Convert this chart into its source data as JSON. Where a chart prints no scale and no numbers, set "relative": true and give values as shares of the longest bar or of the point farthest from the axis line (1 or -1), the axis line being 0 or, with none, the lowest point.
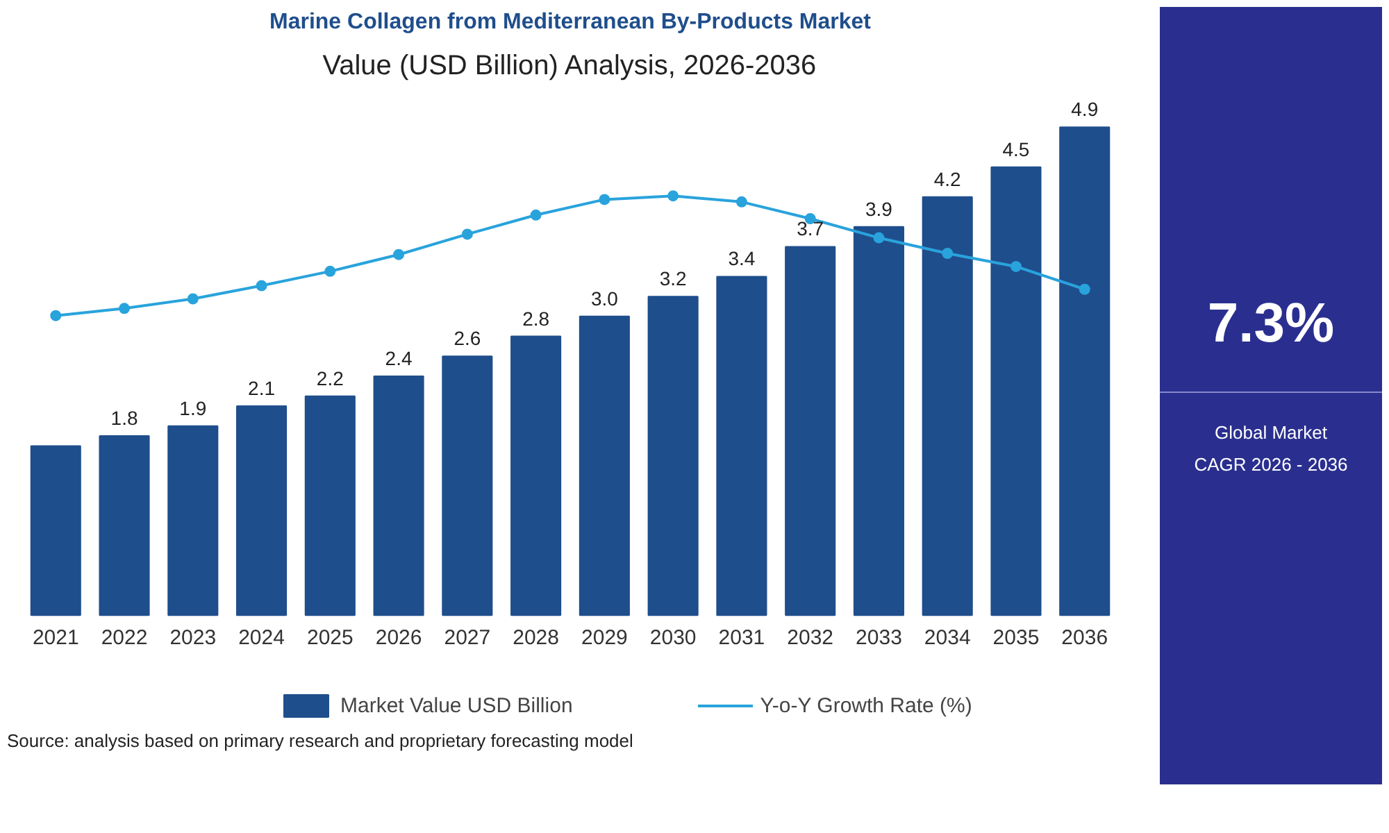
{
  "chart_data": [
    {
      "type": "bar",
      "title": "Marine Collagen from Mediterranean By-Products Market",
      "subtitle": "Value (USD Billion) Analysis, 2026-2036",
      "categories": [
        "2021",
        "2022",
        "2023",
        "2024",
        "2025",
        "2026",
        "2027",
        "2028",
        "2029",
        "2030",
        "2031",
        "2032",
        "2033",
        "2034",
        "2035",
        "2036"
      ],
      "series": [
        {
          "name": "Market Value USD Billion",
          "color": "#1f4e8c",
          "values": [
            1.7,
            1.8,
            1.9,
            2.1,
            2.2,
            2.4,
            2.6,
            2.8,
            3.0,
            3.2,
            3.4,
            3.7,
            3.9,
            4.2,
            4.5,
            4.9
          ],
          "value_labels": [
            null,
            "1.8",
            "1.9",
            "2.1",
            "2.2",
            "2.4",
            "2.6",
            "2.8",
            "3.0",
            "3.2",
            "3.4",
            "3.7",
            "3.9",
            "4.2",
            "4.5",
            "4.9"
          ]
        }
      ],
      "tick_labels": "x",
      "legend": "bottom",
      "annotations": [
        "Source: analysis based on primary research and proprietary forecasting model",
        "7.3%",
        "Global Market",
        "CAGR 2026 - 2036"
      ]
    },
    {
      "type": "line",
      "relative": true,
      "categories": [
        "2021",
        "2022",
        "2023",
        "2024",
        "2025",
        "2026",
        "2027",
        "2028",
        "2029",
        "2030",
        "2031",
        "2032",
        "2033",
        "2034",
        "2035",
        "2036"
      ],
      "series": [
        {
          "name": "Y-o-Y Growth Rate (%)",
          "color": "#29a3dc",
          "values": [
            0,
            0.06,
            0.14,
            0.25,
            0.37,
            0.51,
            0.68,
            0.84,
            0.97,
            1.0,
            0.95,
            0.81,
            0.65,
            0.52,
            0.41,
            0.22
          ]
        }
      ],
      "tick_labels": false,
      "legend": "bottom",
      "marker": "circle",
      "line_style": "solid"
    }
  ]
}
